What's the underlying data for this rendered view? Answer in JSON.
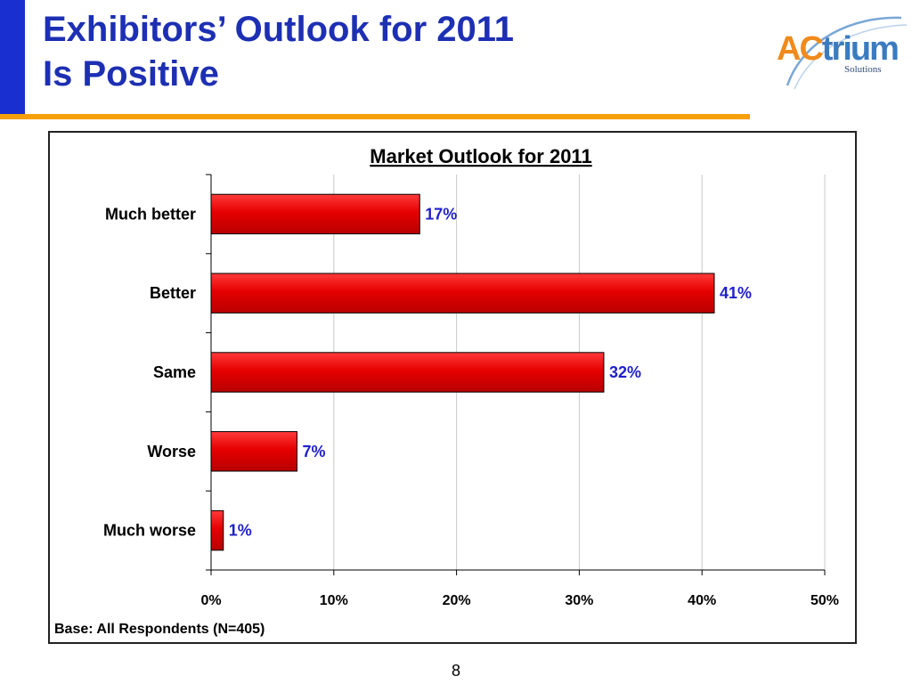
{
  "slide": {
    "title_line1": "Exhibitors’ Outlook for 2011",
    "title_line2": "Is Positive",
    "page_number": "8",
    "accent_color": "#f5a00a",
    "side_bar_color": "#1a2fd0"
  },
  "logo": {
    "letter_a": "A",
    "letter_c": "C",
    "word_rest": "trium",
    "subtitle": "Solutions"
  },
  "chart_data": {
    "type": "bar",
    "orientation": "horizontal",
    "title": "Market Outlook for 2011",
    "categories": [
      "Much better",
      "Better",
      "Same",
      "Worse",
      "Much worse"
    ],
    "values": [
      17,
      41,
      32,
      7,
      1
    ],
    "data_labels": [
      "17%",
      "41%",
      "32%",
      "7%",
      "1%"
    ],
    "xlim": [
      0,
      50
    ],
    "xticks": [
      0,
      10,
      20,
      30,
      40,
      50
    ],
    "xtick_labels": [
      "0%",
      "10%",
      "20%",
      "30%",
      "40%",
      "50%"
    ],
    "grid": "vertical",
    "bar_color": "#e60000",
    "label_color": "#1f1fcc",
    "footnote": "Base: All Respondents (N=405)"
  }
}
